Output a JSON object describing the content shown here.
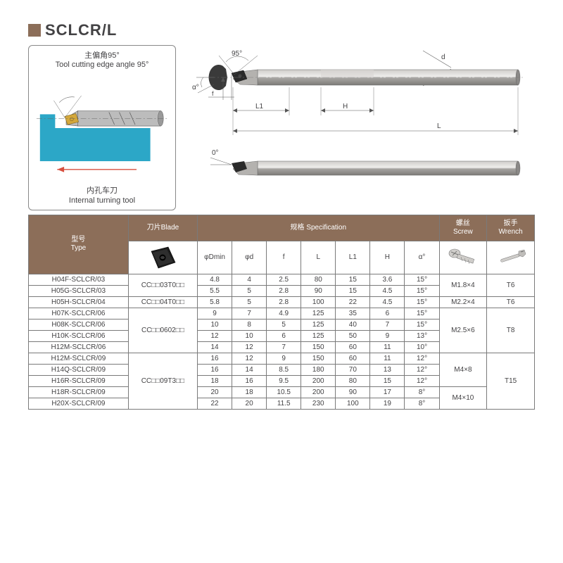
{
  "title": "SCLCR/L",
  "panel": {
    "top_cn": "主偏角95°",
    "top_en": "Tool cutting edge angle 95°",
    "bottom_cn": "内孔车刀",
    "bottom_en": "Internal turning tool"
  },
  "diagram_labels": {
    "angle_95": "95°",
    "alpha": "α°",
    "L1": "L1",
    "H": "H",
    "L": "L",
    "d": "d",
    "zero": "0°"
  },
  "headers": {
    "type_cn": "型号",
    "type_en": "Type",
    "blade_cn": "刀片",
    "blade_en": "Blade",
    "spec_cn": "规格",
    "spec_en": "Specification",
    "screw_cn": "螺丝",
    "screw_en": "Screw",
    "wrench_cn": "扳手",
    "wrench_en": "Wrench"
  },
  "subheaders": [
    "φDmin",
    "φd",
    "f",
    "L",
    "L1",
    "H",
    "α°"
  ],
  "rows": [
    {
      "type": "H04F-SCLCR/03",
      "blade": "CC□□03T0□□",
      "blade_span": 2,
      "dmin": "4.8",
      "d": "4",
      "f": "2.5",
      "L": "80",
      "L1": "15",
      "H": "3.6",
      "a": "15°",
      "screw": "M1.8×4",
      "screw_span": 2,
      "wrench": "T6",
      "wrench_span": 2
    },
    {
      "type": "H05G-SCLCR/03",
      "dmin": "5.5",
      "d": "5",
      "f": "2.8",
      "L": "90",
      "L1": "15",
      "H": "4.5",
      "a": "15°"
    },
    {
      "type": "H05H-SCLCR/04",
      "blade": "CC□□04T0□□",
      "blade_span": 1,
      "dmin": "5.8",
      "d": "5",
      "f": "2.8",
      "L": "100",
      "L1": "22",
      "H": "4.5",
      "a": "15°",
      "screw": "M2.2×4",
      "screw_span": 1,
      "wrench": "T6",
      "wrench_span": 1
    },
    {
      "type": "H07K-SCLCR/06",
      "blade": "CC□□0602□□",
      "blade_span": 4,
      "dmin": "9",
      "d": "7",
      "f": "4.9",
      "L": "125",
      "L1": "35",
      "H": "6",
      "a": "15°",
      "screw": "M2.5×6",
      "screw_span": 4,
      "wrench": "T8",
      "wrench_span": 4
    },
    {
      "type": "H08K-SCLCR/06",
      "dmin": "10",
      "d": "8",
      "f": "5",
      "L": "125",
      "L1": "40",
      "H": "7",
      "a": "15°"
    },
    {
      "type": "H10K-SCLCR/06",
      "dmin": "12",
      "d": "10",
      "f": "6",
      "L": "125",
      "L1": "50",
      "H": "9",
      "a": "13°"
    },
    {
      "type": "H12M-SCLCR/06",
      "dmin": "14",
      "d": "12",
      "f": "7",
      "L": "150",
      "L1": "60",
      "H": "11",
      "a": "10°"
    },
    {
      "type": "H12M-SCLCR/09",
      "blade": "CC□□09T3□□",
      "blade_span": 5,
      "dmin": "16",
      "d": "12",
      "f": "9",
      "L": "150",
      "L1": "60",
      "H": "11",
      "a": "12°",
      "screw": "M4×8",
      "screw_span": 3,
      "wrench": "T15",
      "wrench_span": 5
    },
    {
      "type": "H14Q-SCLCR/09",
      "dmin": "16",
      "d": "14",
      "f": "8.5",
      "L": "180",
      "L1": "70",
      "H": "13",
      "a": "12°"
    },
    {
      "type": "H16R-SCLCR/09",
      "dmin": "18",
      "d": "16",
      "f": "9.5",
      "L": "200",
      "L1": "80",
      "H": "15",
      "a": "12°"
    },
    {
      "type": "H18R-SCLCR/09",
      "dmin": "20",
      "d": "18",
      "f": "10.5",
      "L": "200",
      "L1": "90",
      "H": "17",
      "a": "8°",
      "screw": "M4×10",
      "screw_span": 2
    },
    {
      "type": "H20X-SCLCR/09",
      "dmin": "22",
      "d": "20",
      "f": "11.5",
      "L": "230",
      "L1": "100",
      "H": "19",
      "a": "8°"
    }
  ],
  "colors": {
    "header_bg": "#8c6e59",
    "border": "#7a7a7a",
    "text": "#434244",
    "tool_body": "#a8a6a3",
    "tool_dark": "#3a3a3a",
    "workpiece": "#2ca7c7",
    "insert_yellow": "#d4a83c",
    "arrow_red": "#d8503f"
  }
}
